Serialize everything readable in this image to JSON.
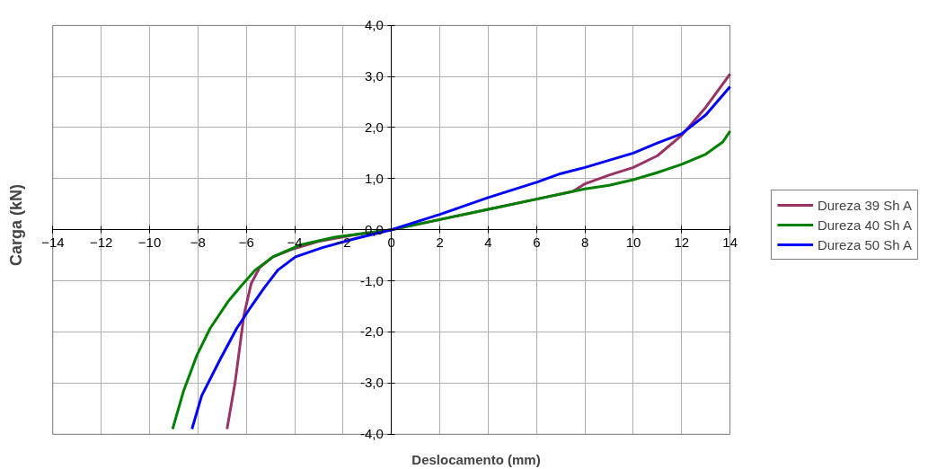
{
  "chart_data": {
    "type": "line",
    "xlabel": "Deslocamento (mm)",
    "ylabel": "Carga (kN)",
    "xlim": [
      -14,
      14
    ],
    "ylim": [
      -4,
      4
    ],
    "xticks": [
      -14,
      -12,
      -10,
      -8,
      -6,
      -4,
      -2,
      0,
      2,
      4,
      6,
      8,
      10,
      12,
      14
    ],
    "yticks": [
      {
        "value": -4,
        "label": "-4,0"
      },
      {
        "value": -3,
        "label": "-3,0"
      },
      {
        "value": -2,
        "label": "-2,0"
      },
      {
        "value": -1,
        "label": "-1,0"
      },
      {
        "value": 0,
        "label": "0,0"
      },
      {
        "value": 1,
        "label": "1,0"
      },
      {
        "value": 2,
        "label": "2,0"
      },
      {
        "value": 3,
        "label": "3,0"
      },
      {
        "value": 4,
        "label": "4,0"
      }
    ],
    "grid": true,
    "legend": "right",
    "marker": "none",
    "line_style": "solid",
    "series": [
      {
        "name": "Dureza 39 Sh A",
        "color": "#993366",
        "x": [
          -6.8,
          -6.47,
          -6.1,
          -5.8,
          -5.45,
          -4.9,
          -4.15,
          -3.04,
          -1.56,
          0,
          2,
          4,
          6,
          7.5,
          8,
          9,
          10,
          11,
          12,
          13,
          14
        ],
        "values": [
          -3.9,
          -3.0,
          -1.67,
          -1.05,
          -0.74,
          -0.53,
          -0.39,
          -0.23,
          -0.1,
          0,
          0.2,
          0.4,
          0.6,
          0.75,
          0.9,
          1.07,
          1.22,
          1.45,
          1.85,
          2.4,
          3.05
        ]
      },
      {
        "name": "Dureza 40 Sh A",
        "color": "#008000",
        "x": [
          -9.05,
          -8.6,
          -8.05,
          -7.5,
          -6.75,
          -6.2,
          -5.64,
          -4.9,
          -3.8,
          -2.3,
          0,
          2,
          4,
          6,
          8,
          9,
          10,
          11,
          12,
          13,
          13.7,
          14
        ],
        "values": [
          -3.9,
          -3.16,
          -2.46,
          -1.93,
          -1.4,
          -1.09,
          -0.79,
          -0.53,
          -0.3,
          -0.14,
          0,
          0.2,
          0.4,
          0.6,
          0.8,
          0.87,
          0.98,
          1.12,
          1.28,
          1.48,
          1.72,
          1.93
        ]
      },
      {
        "name": "Dureza 50 Sh A",
        "color": "#0000ff",
        "x": [
          -8.25,
          -7.85,
          -7.1,
          -6.4,
          -5.8,
          -5.27,
          -4.7,
          -3.97,
          -2.86,
          -1.56,
          0,
          2,
          4,
          6,
          7,
          8,
          10,
          11,
          12,
          13,
          14
        ],
        "values": [
          -3.9,
          -3.25,
          -2.55,
          -1.93,
          -1.5,
          -1.14,
          -0.79,
          -0.53,
          -0.35,
          -0.18,
          0,
          0.3,
          0.63,
          0.93,
          1.1,
          1.22,
          1.5,
          1.7,
          1.88,
          2.25,
          2.8
        ]
      }
    ]
  }
}
